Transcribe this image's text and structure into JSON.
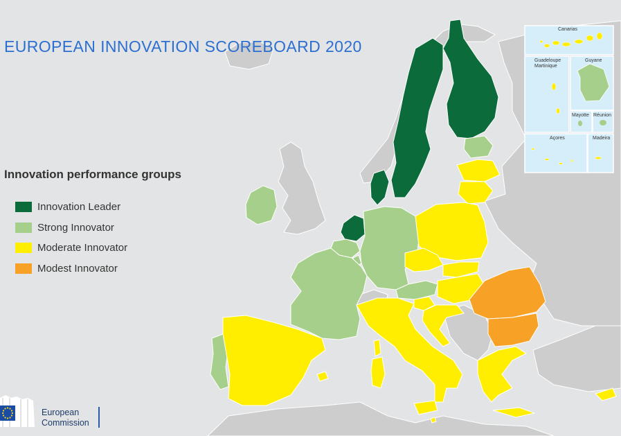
{
  "title": "EUROPEAN INNOVATION SCOREBOARD 2020",
  "legend": {
    "title": "Innovation performance groups",
    "items": [
      {
        "label": "Innovation Leader",
        "color": "#0b6b3a"
      },
      {
        "label": "Strong Innovator",
        "color": "#a6cf8c"
      },
      {
        "label": "Moderate Innovator",
        "color": "#ffee00"
      },
      {
        "label": "Modest Innovator",
        "color": "#f7a126"
      }
    ]
  },
  "colors": {
    "background": "#e3e4e5",
    "sea": "#d6eefa",
    "non_member_land": "#cdcdcd",
    "border": "#ffffff"
  },
  "insets": {
    "canarias": "Canarias",
    "guadeloupe": "Guadeloupe",
    "martinique": "Martinique",
    "guyane": "Guyane",
    "mayotte": "Mayotte",
    "reunion": "Réunion",
    "acores": "Açores",
    "madeira": "Madeira"
  },
  "logo": {
    "line1": "European",
    "line2": "Commission"
  }
}
